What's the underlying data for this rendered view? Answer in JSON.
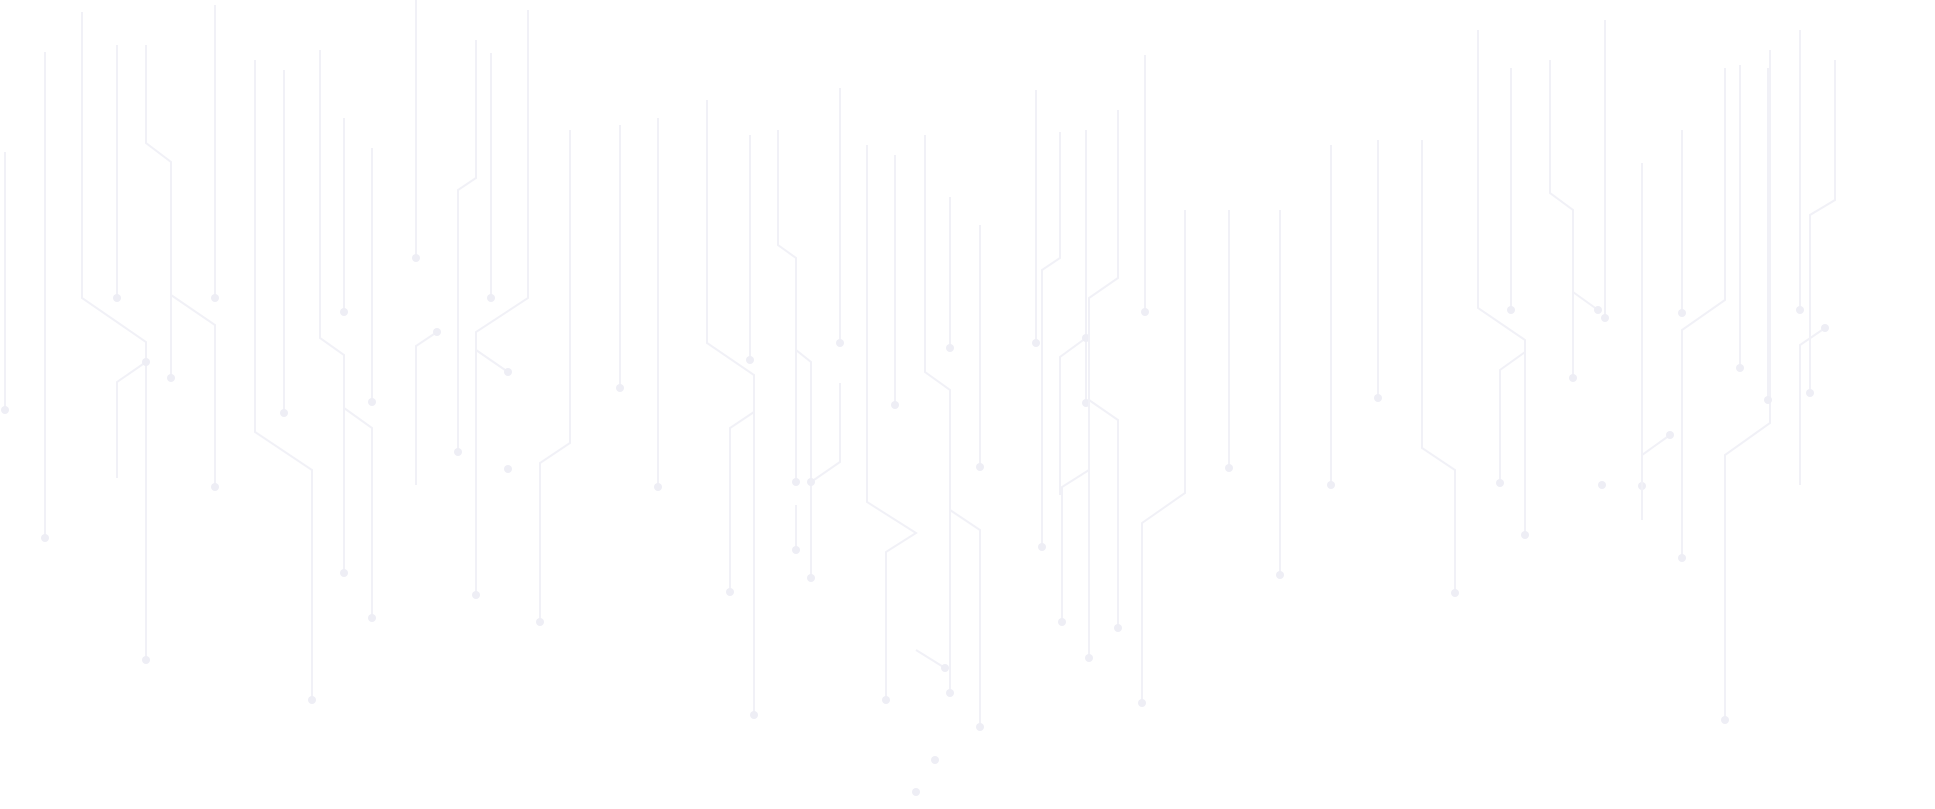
{
  "theme": {
    "background": "#ffffff",
    "trace_color": "#f1f1f7",
    "node_color": "#eeeef5"
  }
}
